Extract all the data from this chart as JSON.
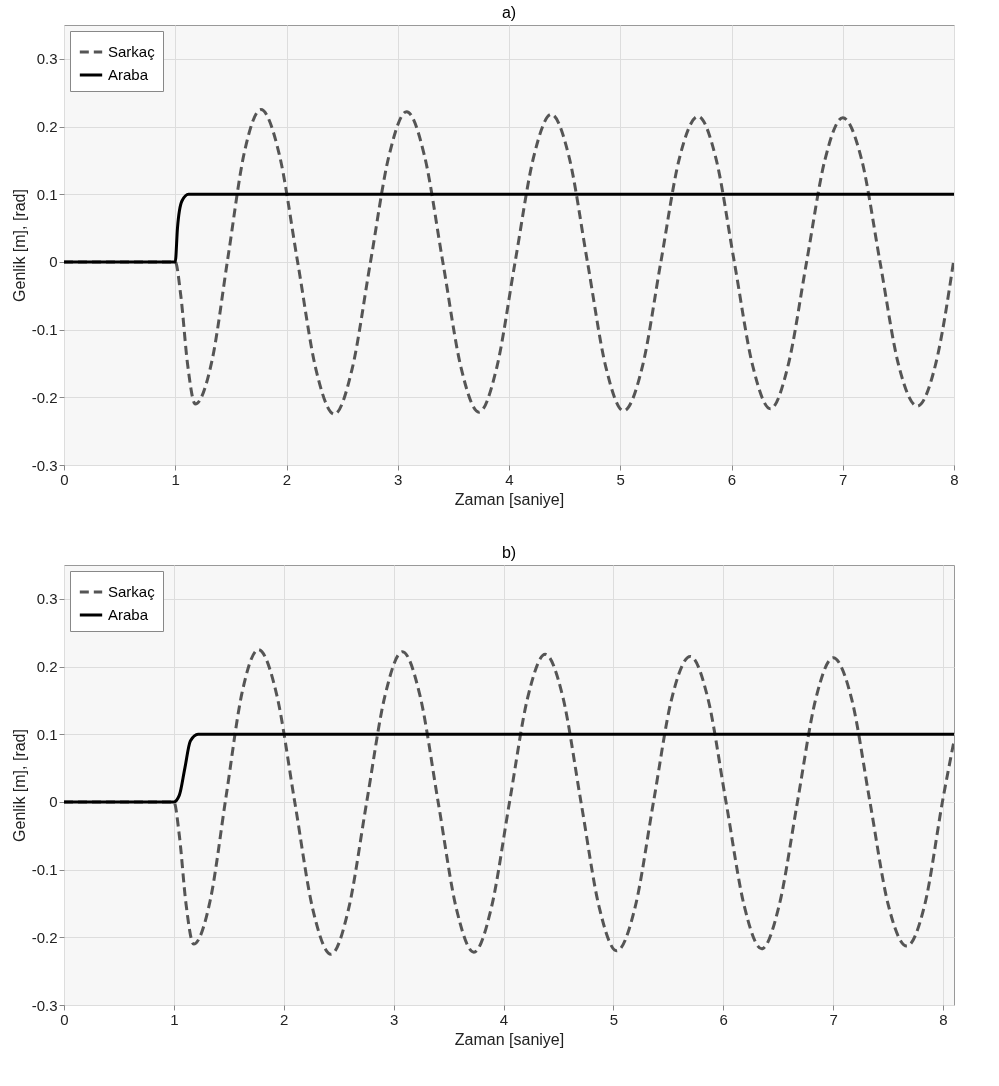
{
  "chart_data": [
    {
      "type": "line",
      "title": "a)",
      "xlabel": "Zaman [saniye]",
      "ylabel": "Genlik [m], [rad]",
      "xlim": [
        0,
        8
      ],
      "xticks": [
        0,
        1,
        2,
        3,
        4,
        5,
        6,
        7,
        8
      ],
      "ylim": [
        -0.3,
        0.35
      ],
      "yticks": [
        -0.3,
        -0.2,
        -0.1,
        0,
        0.1,
        0.2,
        0.3
      ],
      "grid": true,
      "legend": "top left",
      "series": [
        {
          "name": "Sarkaç",
          "color": "#555555",
          "line_style": "dashed",
          "x": [
            0,
            1,
            1.05,
            1.11,
            1.18,
            1.33,
            1.475,
            1.62,
            1.77,
            1.935,
            2.1,
            2.265,
            2.43,
            2.59,
            2.755,
            2.92,
            3.08,
            3.24,
            3.405,
            3.57,
            3.73,
            3.89,
            4.055,
            4.22,
            4.38,
            4.54,
            4.705,
            4.87,
            5.03,
            5.2,
            5.365,
            5.53,
            5.7,
            5.86,
            6.025,
            6.19,
            6.35,
            6.51,
            6.675,
            6.84,
            7,
            7.17,
            7.335,
            7.5,
            7.67,
            7.835,
            8
          ],
          "values": [
            0,
            0,
            -0.05,
            -0.15,
            -0.21,
            -0.146,
            0.008,
            0.161,
            0.225,
            0.159,
            0,
            -0.159,
            -0.225,
            -0.158,
            0,
            0.156,
            0.222,
            0.157,
            0,
            -0.157,
            -0.222,
            -0.156,
            0,
            0.154,
            0.218,
            0.155,
            0,
            -0.155,
            -0.22,
            -0.154,
            0,
            0.152,
            0.215,
            0.153,
            0,
            -0.153,
            -0.217,
            -0.152,
            0,
            0.151,
            0.213,
            0.151,
            0,
            -0.151,
            -0.213,
            -0.151,
            0.005
          ]
        },
        {
          "name": "Araba",
          "color": "#000000",
          "line_style": "solid",
          "x": [
            0,
            1,
            1.02,
            1.06,
            1.12,
            8
          ],
          "values": [
            0,
            0,
            0.05,
            0.09,
            0.1,
            0.1
          ]
        }
      ]
    },
    {
      "type": "line",
      "title": "b)",
      "xlabel": "Zaman [saniye]",
      "ylabel": "Genlik [m], [rad]",
      "xlim": [
        0,
        8.1
      ],
      "xticks": [
        0,
        1,
        2,
        3,
        4,
        5,
        6,
        7,
        8
      ],
      "ylim": [
        -0.3,
        0.35
      ],
      "yticks": [
        -0.3,
        -0.2,
        -0.1,
        0,
        0.1,
        0.2,
        0.3
      ],
      "grid": true,
      "legend": "top left",
      "series": [
        {
          "name": "Sarkaç",
          "color": "#555555",
          "line_style": "dashed",
          "x": [
            0,
            1,
            1.05,
            1.11,
            1.18,
            1.33,
            1.475,
            1.62,
            1.77,
            1.935,
            2.1,
            2.265,
            2.43,
            2.59,
            2.755,
            2.92,
            3.08,
            3.24,
            3.405,
            3.57,
            3.73,
            3.89,
            4.055,
            4.22,
            4.38,
            4.54,
            4.705,
            4.87,
            5.03,
            5.2,
            5.365,
            5.53,
            5.7,
            5.86,
            6.025,
            6.19,
            6.35,
            6.51,
            6.675,
            6.84,
            7,
            7.17,
            7.335,
            7.5,
            7.67,
            7.835,
            8,
            8.1
          ],
          "values": [
            0,
            0,
            -0.05,
            -0.15,
            -0.21,
            -0.146,
            0.008,
            0.161,
            0.225,
            0.159,
            0,
            -0.159,
            -0.225,
            -0.158,
            0,
            0.156,
            0.222,
            0.157,
            0,
            -0.157,
            -0.222,
            -0.156,
            0,
            0.154,
            0.218,
            0.155,
            0,
            -0.155,
            -0.22,
            -0.154,
            0,
            0.152,
            0.215,
            0.153,
            0,
            -0.153,
            -0.217,
            -0.152,
            0,
            0.151,
            0.213,
            0.151,
            0,
            -0.151,
            -0.213,
            -0.151,
            0.005,
            0.09
          ]
        },
        {
          "name": "Araba",
          "color": "#000000",
          "line_style": "solid",
          "x": [
            0,
            1,
            1.05,
            1.1,
            1.15,
            1.22,
            8.1
          ],
          "values": [
            0,
            0,
            0.01,
            0.05,
            0.09,
            0.1,
            0.1
          ]
        }
      ]
    }
  ]
}
